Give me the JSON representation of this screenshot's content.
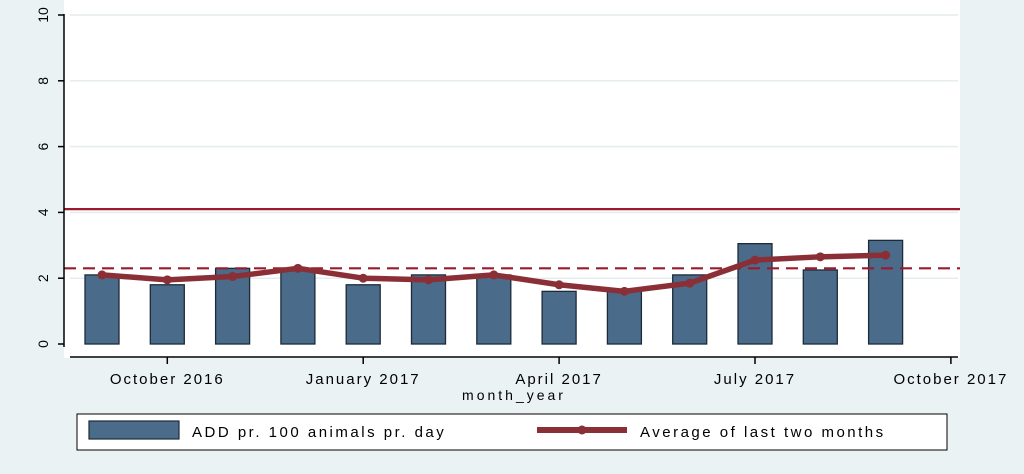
{
  "chart_data": {
    "type": "bar",
    "xlabel": "month_year",
    "ylabel": "",
    "ylim": [
      0,
      10
    ],
    "yticks": [
      0,
      2,
      4,
      6,
      8,
      10
    ],
    "xlim": [
      "2016-09",
      "2017-10"
    ],
    "xticks": [
      {
        "label": "October 2016",
        "month": "2016-10"
      },
      {
        "label": "January 2017",
        "month": "2017-01"
      },
      {
        "label": "April 2017",
        "month": "2017-04"
      },
      {
        "label": "July 2017",
        "month": "2017-07"
      },
      {
        "label": "October 2017",
        "month": "2017-10"
      }
    ],
    "x": [
      "2016-09",
      "2016-10",
      "2016-11",
      "2016-12",
      "2017-01",
      "2017-02",
      "2017-03",
      "2017-04",
      "2017-05",
      "2017-06",
      "2017-07",
      "2017-08",
      "2017-09"
    ],
    "series": [
      {
        "name": "ADD pr. 100 animals pr. day",
        "type": "bar",
        "color": "#4a6b8a",
        "values": [
          2.1,
          1.8,
          2.3,
          2.3,
          1.8,
          2.1,
          2.1,
          1.6,
          1.6,
          2.1,
          3.05,
          2.25,
          3.15
        ]
      },
      {
        "name": "Average of last two months",
        "type": "line",
        "color": "#8b2f37",
        "values": [
          2.1,
          1.95,
          2.05,
          2.3,
          2.0,
          1.95,
          2.1,
          1.8,
          1.6,
          1.85,
          2.55,
          2.65,
          2.7
        ]
      }
    ],
    "reference_lines": [
      {
        "y": 4.1,
        "style": "solid",
        "color": "#9b1b2c"
      },
      {
        "y": 2.3,
        "style": "dashed",
        "color": "#9b1b2c"
      }
    ],
    "grid": true,
    "legend_position": "bottom"
  }
}
